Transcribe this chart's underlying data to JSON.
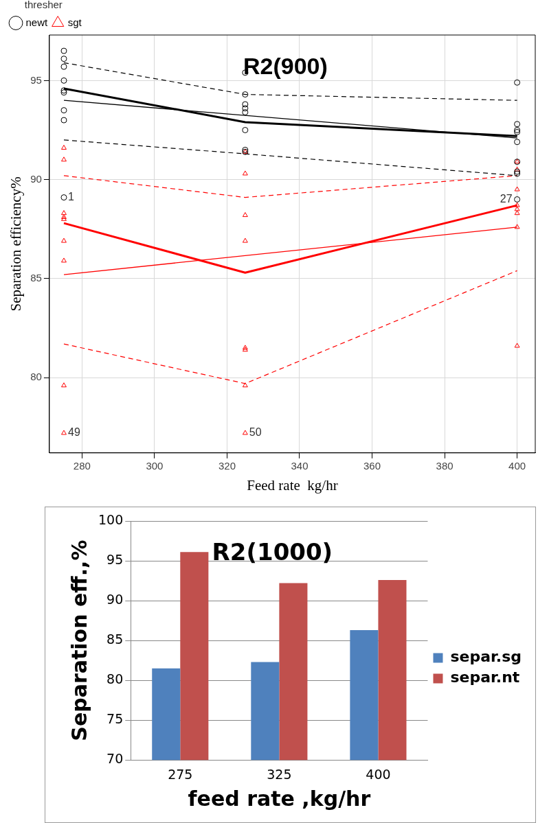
{
  "chart_data": [
    {
      "type": "scatter",
      "title": "R2(900)",
      "xlabel": "Feed rate  kg/hr",
      "ylabel": "Separation efficiency%",
      "legend_title": "thresher",
      "legend": "top left",
      "grid": true,
      "xlim": [
        271,
        405
      ],
      "xticks": [
        280,
        300,
        320,
        340,
        360,
        380,
        400
      ],
      "ylim": [
        76.2,
        97.3
      ],
      "yticks": [
        80,
        85,
        90,
        95
      ],
      "series": [
        {
          "name": "newt",
          "type": "scatter",
          "marker": "circle",
          "color": "#000000",
          "x": [
            275,
            275,
            275,
            275,
            275,
            275,
            275,
            275,
            275,
            325,
            325,
            325,
            325,
            325,
            325,
            325,
            325,
            400,
            400,
            400,
            400,
            400,
            400,
            400,
            400,
            400
          ],
          "values": [
            96.5,
            96.1,
            95.7,
            95.0,
            94.5,
            94.4,
            93.5,
            93.0,
            89.1,
            95.4,
            94.3,
            93.8,
            93.6,
            93.4,
            92.5,
            91.5,
            91.4,
            94.9,
            92.8,
            92.5,
            92.4,
            91.9,
            90.9,
            90.4,
            90.3,
            89.0
          ]
        },
        {
          "name": "sgt",
          "type": "scatter",
          "marker": "triangle",
          "color": "#ff0000",
          "x": [
            275,
            275,
            275,
            275,
            275,
            275,
            275,
            275,
            275,
            325,
            325,
            325,
            325,
            325,
            325,
            325,
            325,
            400,
            400,
            400,
            400,
            400,
            400,
            400,
            400
          ],
          "values": [
            91.6,
            91.0,
            88.3,
            88.1,
            88.0,
            86.9,
            85.9,
            79.6,
            77.2,
            91.4,
            90.3,
            88.2,
            86.9,
            81.5,
            81.4,
            79.6,
            77.2,
            90.9,
            90.5,
            89.5,
            88.7,
            88.5,
            88.3,
            87.6,
            81.6
          ]
        },
        {
          "type": "line",
          "marker": "none",
          "line_style": "solid",
          "color": "#000000",
          "x": [
            275,
            325,
            400
          ],
          "values": [
            94.6,
            92.9,
            92.2
          ]
        },
        {
          "type": "line",
          "marker": "none",
          "line_style": "solid",
          "color": "#000000",
          "x": [
            275,
            400
          ],
          "values": [
            94.0,
            92.1
          ]
        },
        {
          "type": "line",
          "marker": "none",
          "line_style": "dashed",
          "color": "#000000",
          "x": [
            275,
            325,
            400
          ],
          "values": [
            95.9,
            94.3,
            94.0
          ]
        },
        {
          "type": "line",
          "marker": "none",
          "line_style": "dashed",
          "color": "#000000",
          "x": [
            275,
            325,
            400
          ],
          "values": [
            92.0,
            91.3,
            90.2
          ]
        },
        {
          "type": "line",
          "marker": "none",
          "line_style": "solid",
          "color": "#ff0000",
          "x": [
            275,
            325,
            400
          ],
          "values": [
            87.8,
            85.3,
            88.7
          ]
        },
        {
          "type": "line",
          "marker": "none",
          "line_style": "solid",
          "color": "#ff0000",
          "x": [
            275,
            400
          ],
          "values": [
            85.2,
            87.6
          ]
        },
        {
          "type": "line",
          "marker": "none",
          "line_style": "dashed",
          "color": "#ff0000",
          "x": [
            275,
            325,
            400
          ],
          "values": [
            90.2,
            89.1,
            90.2
          ]
        },
        {
          "type": "line",
          "marker": "none",
          "line_style": "dashed",
          "color": "#ff0000",
          "x": [
            275,
            325,
            400
          ],
          "values": [
            81.7,
            79.7,
            85.4
          ]
        }
      ],
      "annotations": [
        {
          "text": "1",
          "x": 275,
          "y": 89.1
        },
        {
          "text": "49",
          "x": 275,
          "y": 77.2
        },
        {
          "text": "50",
          "x": 325,
          "y": 77.2
        },
        {
          "text": "27",
          "x": 400,
          "y": 89.0
        }
      ]
    },
    {
      "type": "bar",
      "title": "R2(1000)",
      "xlabel": "feed rate ,kg/hr",
      "ylabel": "Separation eff.,%",
      "legend": "right",
      "grid": "y",
      "categories": [
        "275",
        "325",
        "400"
      ],
      "ylim": [
        70,
        100
      ],
      "yticks": [
        70,
        75,
        80,
        85,
        90,
        95,
        100
      ],
      "series": [
        {
          "name": "separ.sg",
          "color": "#4f81bd",
          "values": [
            81.5,
            82.3,
            86.3
          ]
        },
        {
          "name": "separ.nt",
          "color": "#c0504d",
          "values": [
            96.1,
            92.2,
            92.6
          ]
        }
      ]
    }
  ]
}
